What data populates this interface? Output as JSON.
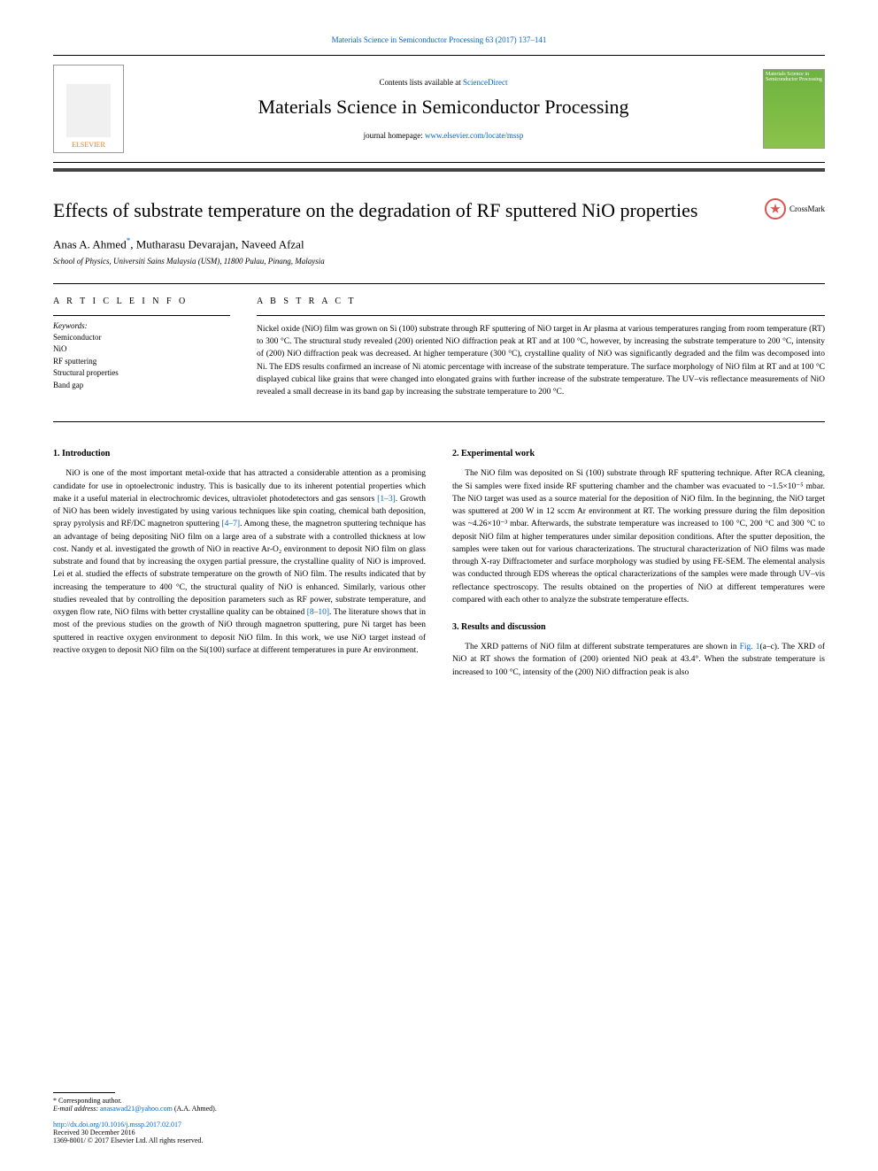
{
  "header": {
    "citation": "Materials Science in Semiconductor Processing 63 (2017) 137–141",
    "contents_line_prefix": "Contents lists available at ",
    "contents_link": "ScienceDirect",
    "journal_name": "Materials Science in Semiconductor Processing",
    "homepage_prefix": "journal homepage: ",
    "homepage_url": "www.elsevier.com/locate/mssp",
    "publisher": "ELSEVIER",
    "crossmark": "CrossMark",
    "cover_text": "Materials Science in Semiconductor Processing"
  },
  "article": {
    "title": "Effects of substrate temperature on the degradation of RF sputtered NiO properties",
    "authors_html": "Anas A. Ahmed<span class=\"asterisk\">*</span>, Mutharasu Devarajan, Naveed Afzal",
    "affiliation": "School of Physics, Universiti Sains Malaysia (USM), 11800 Pulau, Pinang, Malaysia"
  },
  "info": {
    "label": "A R T I C L E   I N F O",
    "keywords_label": "Keywords:",
    "keywords": [
      "Semiconductor",
      "NiO",
      "RF sputtering",
      "Structural properties",
      "Band gap"
    ]
  },
  "abstract": {
    "label": "A B S T R A C T",
    "text": "Nickel oxide (NiO) film was grown on Si (100) substrate through RF sputtering of NiO target in Ar plasma at various temperatures ranging from room temperature (RT) to 300 °C. The structural study revealed (200) oriented NiO diffraction peak at RT and at 100 °C, however, by increasing the substrate temperature to 200 °C, intensity of (200) NiO diffraction peak was decreased. At higher temperature (300 °C), crystalline quality of NiO was significantly degraded and the film was decomposed into Ni. The EDS results confirmed an increase of Ni atomic percentage with increase of the substrate temperature. The surface morphology of NiO film at RT and at 100 °C displayed cubical like grains that were changed into elongated grains with further increase of the substrate temperature. The UV–vis reflectance measurements of NiO revealed a small decrease in its band gap by increasing the substrate temperature to 200 °C."
  },
  "sections": {
    "intro": {
      "heading": "1. Introduction",
      "paragraph": "NiO is one of the most important metal-oxide that has attracted a considerable attention as a promising candidate for use in optoelectronic industry. This is basically due to its inherent potential properties which make it a useful material in electrochromic devices, ultraviolet photodetectors and gas sensors [1–3]. Growth of NiO has been widely investigated by using various techniques like spin coating, chemical bath deposition, spray pyrolysis and RF/DC magnetron sputtering [4–7]. Among these, the magnetron sputtering technique has an advantage of being depositing NiO film on a large area of a substrate with a controlled thickness at low cost. Nandy et al. investigated the growth of NiO in reactive Ar-O₂ environment to deposit NiO film on glass substrate and found that by increasing the oxygen partial pressure, the crystalline quality of NiO is improved. Lei et al. studied the effects of substrate temperature on the growth of NiO film. The results indicated that by increasing the temperature to 400 °C, the structural quality of NiO is enhanced. Similarly, various other studies revealed that by controlling the deposition parameters such as RF power, substrate temperature, and oxygen flow rate, NiO films with better crystalline quality can be obtained [8–10]. The literature shows that in most of the previous studies on the growth of NiO through magnetron sputtering, pure Ni target has been sputtered in reactive oxygen environment to deposit NiO film. In this work, we use NiO target instead of reactive oxygen to deposit NiO film on the Si(100) surface at different temperatures in pure Ar environment."
    },
    "exp": {
      "heading": "2. Experimental work",
      "paragraph": "The NiO film was deposited on Si (100) substrate through RF sputtering technique. After RCA cleaning, the Si samples were fixed inside RF sputtering chamber and the chamber was evacuated to ~1.5×10⁻⁵ mbar. The NiO target was used as a source material for the deposition of NiO film. In the beginning, the NiO target was sputtered at 200 W in 12 sccm Ar environment at RT. The working pressure during the film deposition was ~4.26×10⁻³ mbar. Afterwards, the substrate temperature was increased to 100 °C, 200 °C and 300 °C to deposit NiO film at higher temperatures under similar deposition conditions. After the sputter deposition, the samples were taken out for various characterizations. The structural characterization of NiO films was made through X-ray Diffractometer and surface morphology was studied by using FE-SEM. The elemental analysis was conducted through EDS whereas the optical characterizations of the samples were made through UV–vis reflectance spectroscopy. The results obtained on the properties of NiO at different temperatures were compared with each other to analyze the substrate temperature effects."
    },
    "results": {
      "heading": "3. Results and discussion",
      "paragraph": "The XRD patterns of NiO film at different substrate temperatures are shown in Fig. 1(a–c). The XRD of NiO at RT shows the formation of (200) oriented NiO peak at 43.4°. When the substrate temperature is increased to 100 °C, intensity of the (200) NiO diffraction peak is also"
    }
  },
  "footer": {
    "corresponding": "* Corresponding author.",
    "email_label": "E-mail address: ",
    "email": "anasawad21@yahoo.com",
    "email_suffix": " (A.A. Ahmed).",
    "doi": "http://dx.doi.org/10.1016/j.mssp.2017.02.017",
    "received": "Received 30 December 2016",
    "copyright": "1369-8001/ © 2017 Elsevier Ltd. All rights reserved."
  },
  "refs": {
    "r1": "[1–3]",
    "r2": "[4–7]",
    "r3": "[8–10]",
    "fig1": "Fig. 1"
  },
  "colors": {
    "link": "#0066cc",
    "accent": "#444444",
    "publisher": "#e67e22",
    "cover": "#6db33f"
  }
}
